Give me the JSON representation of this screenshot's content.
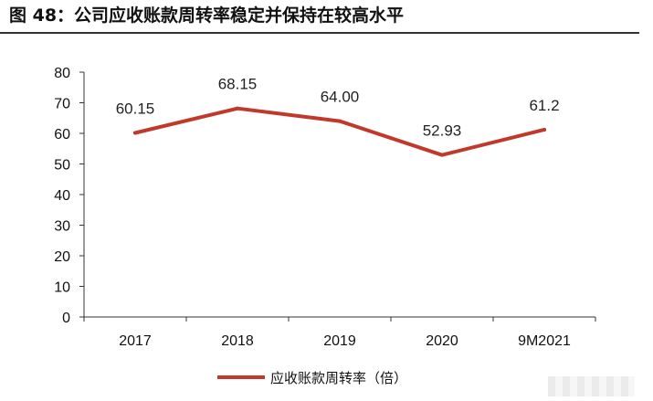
{
  "figure_title": "图 48：公司应收账款周转率稳定并保持在较高水平",
  "chart_data": {
    "type": "line",
    "title": "",
    "xlabel": "",
    "ylabel": "",
    "categories": [
      "2017",
      "2018",
      "2019",
      "2020",
      "9M2021"
    ],
    "series": [
      {
        "name": "应收账款周转率（倍）",
        "values": [
          60.15,
          68.15,
          64.0,
          52.93,
          61.2
        ],
        "labels": [
          "60.15",
          "68.15",
          "64.00",
          "52.93",
          "61.2"
        ],
        "color": "#c0392b"
      }
    ],
    "ylim": [
      0,
      80
    ],
    "yticks": [
      0,
      10,
      20,
      30,
      40,
      50,
      60,
      70,
      80
    ],
    "grid": false,
    "legend_position": "bottom"
  }
}
